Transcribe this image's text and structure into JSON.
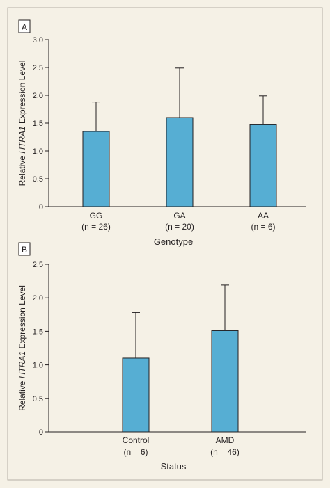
{
  "style": {
    "frame_bg": "#f5f1e6",
    "border_color": "#b5b0a5",
    "bar_fill": "#56aed3",
    "bar_stroke": "#231f20",
    "axis_color": "#231f20"
  },
  "chart_data": [
    {
      "panel_label": "A",
      "type": "bar",
      "categories": [
        "GG",
        "GA",
        "AA"
      ],
      "category_notes": [
        "(n = 26)",
        "(n = 20)",
        "(n = 6)"
      ],
      "values": [
        1.35,
        1.6,
        1.47
      ],
      "error_upper": [
        1.88,
        2.49,
        1.99
      ],
      "xlabel": "Genotype",
      "ylabel_prefix": "Relative ",
      "ylabel_italic": "HTRA1",
      "ylabel_suffix": " Expression Level",
      "ylim": [
        0,
        3.0
      ],
      "yticks": [
        "0",
        "0.5",
        "1.0",
        "1.5",
        "2.0",
        "2.5",
        "3.0"
      ],
      "grid": false
    },
    {
      "panel_label": "B",
      "type": "bar",
      "categories": [
        "Control",
        "AMD"
      ],
      "category_notes": [
        "(n = 6)",
        "(n = 46)"
      ],
      "values": [
        1.1,
        1.51
      ],
      "error_upper": [
        1.78,
        2.19
      ],
      "xlabel": "Status",
      "ylabel_prefix": "Relative ",
      "ylabel_italic": "HTRA1",
      "ylabel_suffix": " Expression Level",
      "ylim": [
        0,
        2.5
      ],
      "yticks": [
        "0",
        "0.5",
        "1.0",
        "1.5",
        "2.0",
        "2.5"
      ],
      "grid": false
    }
  ]
}
